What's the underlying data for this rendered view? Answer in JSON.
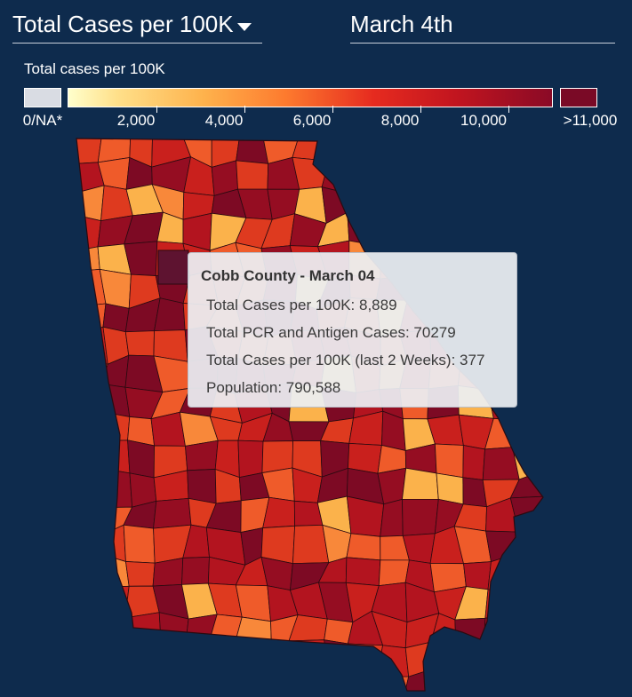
{
  "header": {
    "metric_selector": "Total Cases per 100K",
    "date": "March 4th"
  },
  "legend": {
    "title": "Total cases per 100K",
    "na_label": "0/NA*",
    "max_label": ">11,000",
    "ticks": [
      "2,000",
      "4,000",
      "6,000",
      "8,000",
      "10,000"
    ],
    "na_color": "#d9dce3",
    "max_color": "#7a0a26"
  },
  "tooltip": {
    "title": "Cobb County - March 04",
    "rows": [
      "Total Cases per 100K: 8,889",
      "Total PCR and Antigen Cases: 70279",
      "Total Cases per 100K (last 2 Weeks): 377",
      "Population: 790,588"
    ]
  },
  "colors": {
    "background": "#0e2b4d",
    "county_palette": [
      "#7d0a24",
      "#950d22",
      "#b3141f",
      "#c9201d",
      "#de3a1f",
      "#ef5b2a",
      "#f8883a",
      "#fbb24b"
    ],
    "selected_county": "#5e1330"
  }
}
